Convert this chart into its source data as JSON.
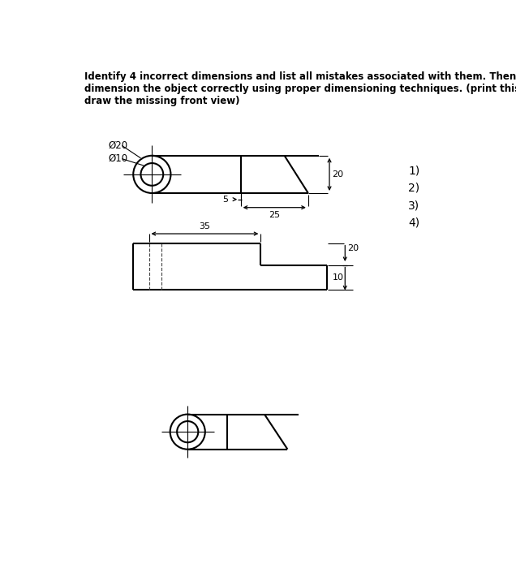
{
  "bg_color": "#ffffff",
  "lc": "#000000",
  "title": "Identify 4 incorrect dimensions and list all mistakes associated with them. Then,\ndimension the object correctly using proper dimensioning techniques. (print this page, and\ndraw the missing front view)",
  "title_fs": 8.5,
  "phi20": "Ø20",
  "phi10": "Ø10",
  "d20": "20",
  "d5": "5",
  "d25": "25",
  "d35": "35",
  "d20b": "20",
  "d10": "10",
  "numbered": [
    "1)",
    "2)",
    "3)",
    "4)"
  ]
}
